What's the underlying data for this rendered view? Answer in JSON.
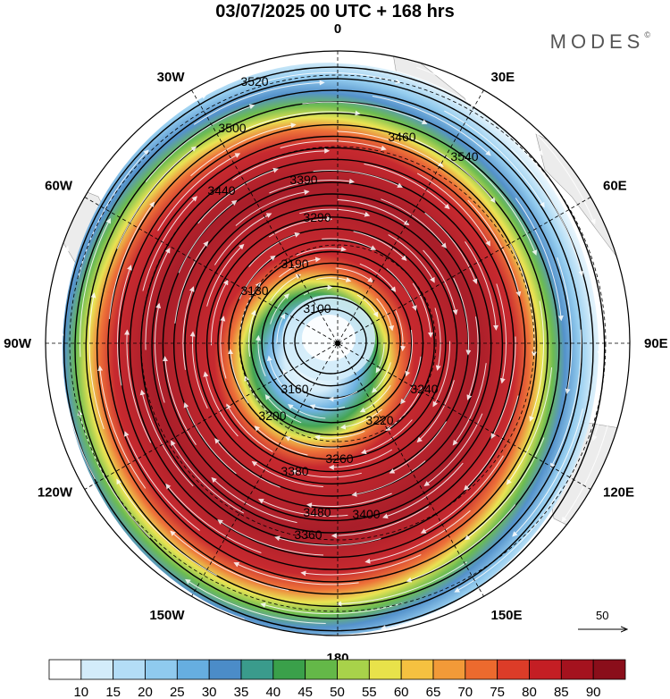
{
  "title": "03/07/2025  00 UTC  + 168 hrs",
  "brand": "MODES",
  "brand_mark": "©",
  "longitude_labels": [
    {
      "text": "0",
      "lon": 0
    },
    {
      "text": "30E",
      "lon": 30
    },
    {
      "text": "60E",
      "lon": 60
    },
    {
      "text": "90E",
      "lon": 90
    },
    {
      "text": "120E",
      "lon": 120
    },
    {
      "text": "150E",
      "lon": 150
    },
    {
      "text": "180",
      "lon": 180
    },
    {
      "text": "150W",
      "lon": -150
    },
    {
      "text": "120W",
      "lon": -120
    },
    {
      "text": "90W",
      "lon": -90
    },
    {
      "text": "60W",
      "lon": -60
    },
    {
      "text": "30W",
      "lon": -30
    }
  ],
  "contour_labels": [
    "3520",
    "3540",
    "3500",
    "3460",
    "3440",
    "3390",
    "3290",
    "3190",
    "3130",
    "3100",
    "3160",
    "3200",
    "3220",
    "3240",
    "3260",
    "3380",
    "3400",
    "3480",
    "3360"
  ],
  "reference_vector": {
    "value": "50"
  },
  "colorbar": {
    "ticks": [
      "10",
      "15",
      "20",
      "25",
      "30",
      "35",
      "40",
      "45",
      "50",
      "55",
      "60",
      "65",
      "70",
      "75",
      "80",
      "85",
      "90"
    ],
    "colors": [
      "#ffffff",
      "#d3ecfa",
      "#b3ddf6",
      "#8fcaee",
      "#66aee0",
      "#4b8cc8",
      "#3a9b8c",
      "#3aa04a",
      "#64b848",
      "#a8d24a",
      "#e8e24a",
      "#f5c140",
      "#f29a38",
      "#ec6a2e",
      "#dc3c28",
      "#c41e24",
      "#a4121e",
      "#8a0e1a"
    ]
  },
  "colors": {
    "ocean": "#ffffff",
    "land": "#ececec",
    "contour": "#000000",
    "streamline": "#ffffff"
  }
}
